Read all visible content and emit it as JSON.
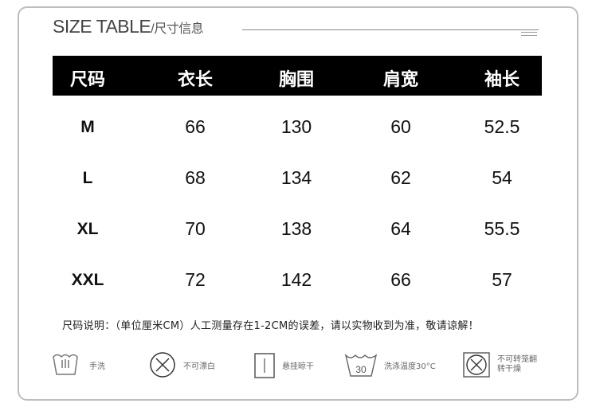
{
  "title": {
    "main": "SIZE TABLE",
    "sub": "/尺寸信息"
  },
  "table": {
    "headers": [
      "尺码",
      "衣长",
      "胸围",
      "肩宽",
      "袖长"
    ],
    "rows": [
      [
        "M",
        "66",
        "130",
        "60",
        "52.5"
      ],
      [
        "L",
        "68",
        "134",
        "62",
        "54"
      ],
      [
        "XL",
        "70",
        "138",
        "64",
        "55.5"
      ],
      [
        "XXL",
        "72",
        "142",
        "66",
        "57"
      ]
    ]
  },
  "note": "尺码说明：（单位厘米CM）人工测量存在1-2CM的误差，请以实物收到为准，敬请谅解！",
  "care": [
    {
      "icon": "hand-wash-icon",
      "label": "手洗"
    },
    {
      "icon": "no-bleach-icon",
      "label": "不可漂白"
    },
    {
      "icon": "hang-dry-icon",
      "label": "悬挂晾干"
    },
    {
      "icon": "wash-30-icon",
      "label": "洗涤温度30°C",
      "temp": "30"
    },
    {
      "icon": "no-tumble-dry-icon",
      "label": "不可转笼翻转干燥"
    }
  ],
  "colors": {
    "header_bg": "#000000",
    "header_text": "#ffffff",
    "border": "#bdbdbd"
  }
}
